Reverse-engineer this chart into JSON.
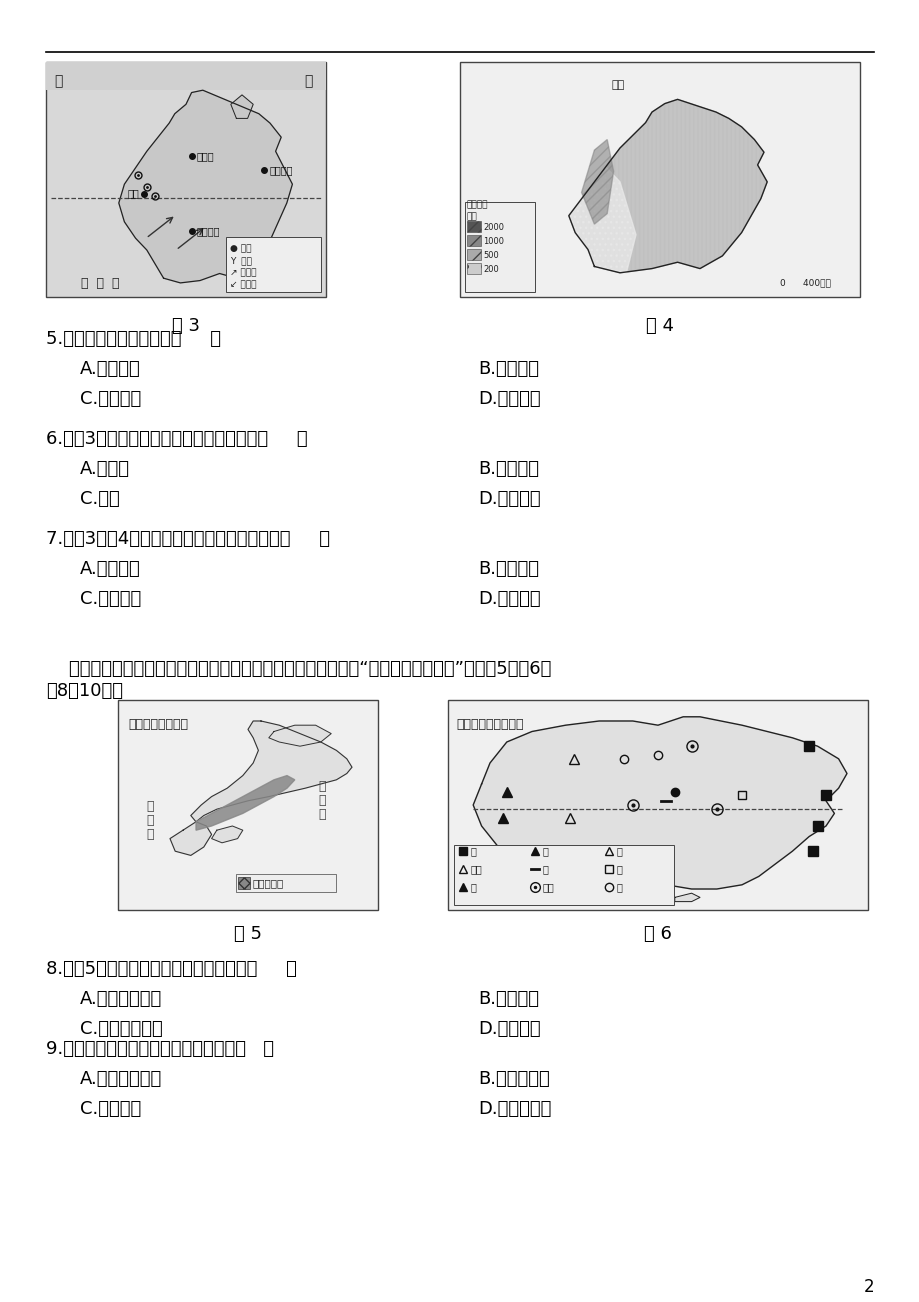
{
  "background_color": "#ffffff",
  "page_number": "2",
  "fig3_title": "图 3",
  "fig4_title": "图 4",
  "fig5_title": "图 5",
  "fig6_title": "图 6",
  "questions": [
    {
      "number": "5",
      "text": "南亚印度的主要人种是（     ）",
      "options": [
        [
          "A.白色人种",
          "B.黄色人种"
        ],
        [
          "C.黑色人种",
          "D.混血人种"
        ]
      ]
    },
    {
      "number": "6",
      "text": "读图3，印度棉缺织工业中心最有可能是（     ）",
      "options": [
        [
          "A.新德里",
          "B.加尔各答"
        ],
        [
          "C.孟买",
          "D.班加罗尔"
        ]
      ]
    },
    {
      "number": "7",
      "text": "读图3，图4，给南亚带来充沛降水的季风是（     ）",
      "options": [
        [
          "A.东北季风",
          "B.西南季风"
        ],
        [
          "C.西北季风",
          "D.东南季风"
        ]
      ]
    }
  ],
  "paragraph_line1": "    本是一个资源小国，经济大国。澳大利亚采矿业发达，被誉为“坐在矿车上的国家”。读图5、图6回",
  "paragraph_line2": "南8～10题。",
  "questions2": [
    {
      "number": "8",
      "text": "从图5可以看出，日本工业布局特点为（     ）",
      "options": [
        [
          "A.临近原料产地",
          "B.沿海分布"
        ],
        [
          "C.沿鐵路线分布",
          "D.沿河分布"
        ]
      ]
    },
    {
      "number": "9",
      "text": "在经济发展中日本可向澳大利亚进口（   ）",
      "options": [
        [
          "A.石油、天然气",
          "B.太阳能、煤"
        ],
        [
          "C.石油、煤",
          "D.铁矿石、煤"
        ]
      ]
    }
  ],
  "text_color": "#000000",
  "line_color": "#000000"
}
